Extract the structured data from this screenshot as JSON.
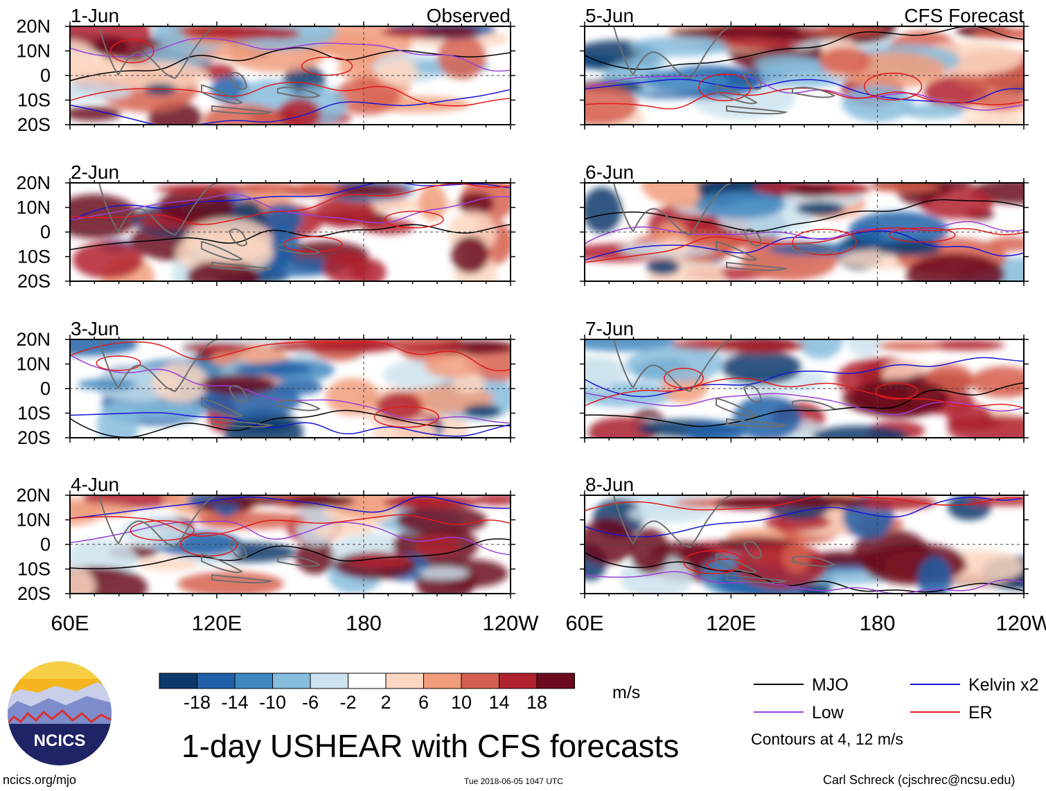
{
  "chart_data": {
    "type": "heatmap",
    "title": "1-day USHEAR with CFS forecasts",
    "unit": "m/s",
    "columns": [
      {
        "label": "Observed",
        "panels": [
          "1-Jun",
          "2-Jun",
          "3-Jun",
          "4-Jun"
        ]
      },
      {
        "label": "CFS Forecast",
        "panels": [
          "5-Jun",
          "6-Jun",
          "7-Jun",
          "8-Jun"
        ]
      }
    ],
    "y_ticks": [
      "20N",
      "10N",
      "0",
      "10S",
      "20S"
    ],
    "y_values": [
      20,
      10,
      0,
      -10,
      -20
    ],
    "x_ticks": [
      "60E",
      "120E",
      "180",
      "120W"
    ],
    "x_values": [
      60,
      120,
      180,
      240
    ],
    "xlim": [
      60,
      240
    ],
    "ylim": [
      -20,
      20
    ],
    "colorbar": {
      "levels": [
        "-18",
        "-14",
        "-10",
        "-6",
        "-2",
        "2",
        "6",
        "10",
        "14",
        "18"
      ],
      "colors": [
        "#0b3a6b",
        "#2160a8",
        "#3f87c0",
        "#86bcdc",
        "#cde3ef",
        "#ffffff",
        "#fdd7c2",
        "#f19d7c",
        "#d6604f",
        "#b0222f",
        "#6b0a1e"
      ]
    },
    "contour_legend": [
      {
        "label": "MJO",
        "color": "#000000"
      },
      {
        "label": "Kelvin x2",
        "color": "#1515d6"
      },
      {
        "label": "Low",
        "color": "#9b40d8"
      },
      {
        "label": "ER",
        "color": "#e01a1a"
      }
    ],
    "contour_note": "Contours at 4, 12 m/s"
  },
  "logo": {
    "text": "NCICS"
  },
  "footer": {
    "site": "ncics.org/mjo",
    "timestamp": "Tue 2018-06-05 1047 UTC",
    "credit": "Carl Schreck (cjschrec@ncsu.edu)"
  }
}
